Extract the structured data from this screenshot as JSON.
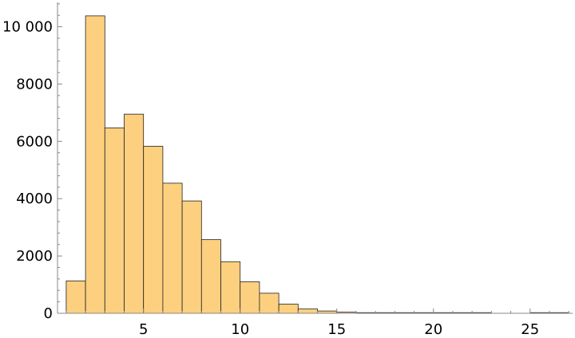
{
  "chart_data": {
    "type": "bar",
    "title": "",
    "xlabel": "",
    "ylabel": "",
    "bar_color": "#fdd080",
    "bar_edge_color": "#222222",
    "bin_width": 1,
    "bin_left_edges": [
      1,
      2,
      3,
      4,
      5,
      6,
      7,
      8,
      9,
      10,
      11,
      12,
      13,
      14,
      15,
      16,
      17,
      18,
      19,
      20,
      21,
      22,
      23,
      24,
      25,
      26
    ],
    "values": [
      1130,
      10380,
      6470,
      6950,
      5830,
      4540,
      3920,
      2570,
      1800,
      1100,
      700,
      320,
      150,
      80,
      40,
      20,
      15,
      10,
      8,
      6,
      5,
      3,
      0,
      0,
      3,
      3
    ],
    "xlim": [
      0.55,
      27.2
    ],
    "ylim": [
      0,
      10850
    ],
    "x_ticks": [
      5,
      10,
      15,
      20,
      25
    ],
    "x_tick_labels": [
      "5",
      "10",
      "15",
      "20",
      "25"
    ],
    "y_ticks": [
      0,
      2000,
      4000,
      6000,
      8000,
      10000
    ],
    "y_tick_labels": [
      "0",
      "2000",
      "4000",
      "6000",
      "8000",
      "10 000"
    ],
    "grid": false,
    "legend": "none"
  }
}
